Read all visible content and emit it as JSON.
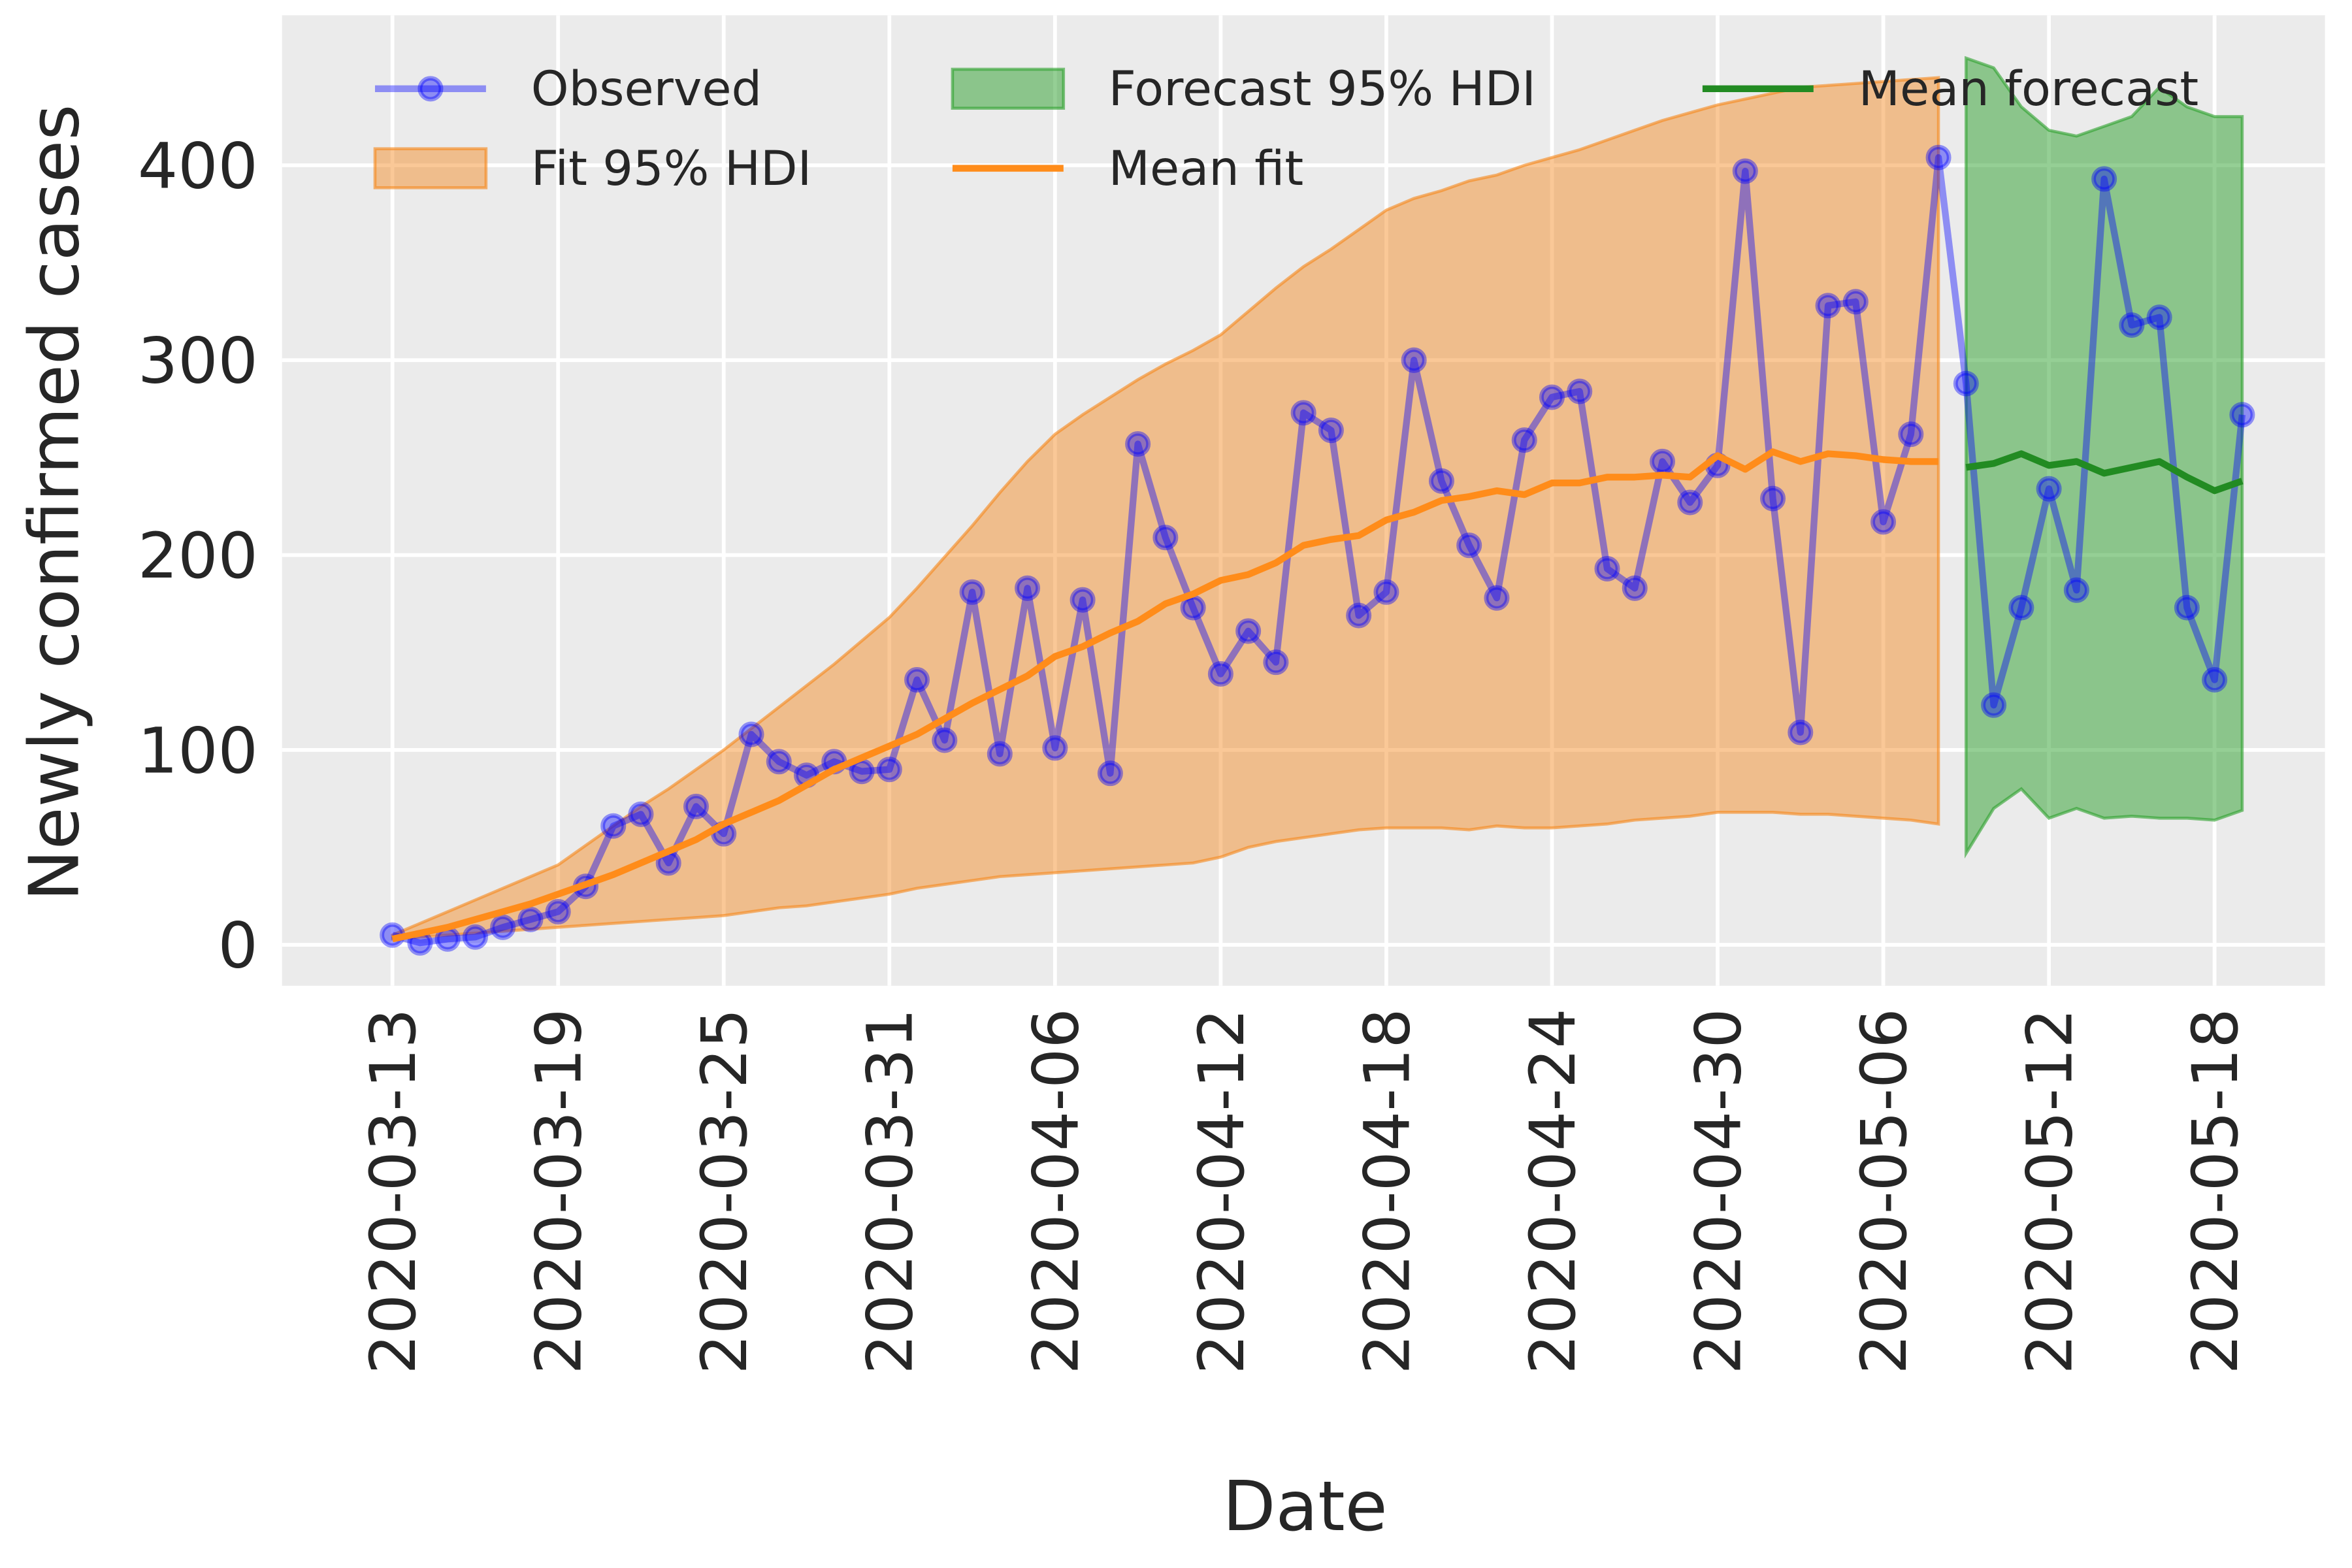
{
  "chart_data": {
    "type": "line",
    "x_label": "Date",
    "y_label": "Newly confirmed cases",
    "x": [
      "2020-03-13",
      "2020-03-14",
      "2020-03-15",
      "2020-03-16",
      "2020-03-17",
      "2020-03-18",
      "2020-03-19",
      "2020-03-20",
      "2020-03-21",
      "2020-03-22",
      "2020-03-23",
      "2020-03-24",
      "2020-03-25",
      "2020-03-26",
      "2020-03-27",
      "2020-03-28",
      "2020-03-29",
      "2020-03-30",
      "2020-03-31",
      "2020-04-01",
      "2020-04-02",
      "2020-04-03",
      "2020-04-04",
      "2020-04-05",
      "2020-04-06",
      "2020-04-07",
      "2020-04-08",
      "2020-04-09",
      "2020-04-10",
      "2020-04-11",
      "2020-04-12",
      "2020-04-13",
      "2020-04-14",
      "2020-04-15",
      "2020-04-16",
      "2020-04-17",
      "2020-04-18",
      "2020-04-19",
      "2020-04-20",
      "2020-04-21",
      "2020-04-22",
      "2020-04-23",
      "2020-04-24",
      "2020-04-25",
      "2020-04-26",
      "2020-04-27",
      "2020-04-28",
      "2020-04-29",
      "2020-04-30",
      "2020-05-01",
      "2020-05-02",
      "2020-05-03",
      "2020-05-04",
      "2020-05-05",
      "2020-05-06",
      "2020-05-07",
      "2020-05-08",
      "2020-05-09",
      "2020-05-10",
      "2020-05-11",
      "2020-05-12",
      "2020-05-13",
      "2020-05-14",
      "2020-05-15",
      "2020-05-16",
      "2020-05-17",
      "2020-05-18",
      "2020-05-19"
    ],
    "series": [
      {
        "name": "Observed",
        "type": "line",
        "color": "#0000ff",
        "alpha": 0.4,
        "marker": true,
        "values": [
          5,
          1,
          3,
          4,
          9,
          13,
          17,
          30,
          61,
          67,
          42,
          71,
          57,
          108,
          94,
          87,
          94,
          89,
          90,
          136,
          105,
          181,
          98,
          183,
          101,
          177,
          88,
          257,
          209,
          173,
          139,
          161,
          145,
          273,
          264,
          169,
          181,
          300,
          238,
          205,
          178,
          259,
          281,
          284,
          193,
          183,
          248,
          227,
          246,
          397,
          229,
          109,
          328,
          330,
          217,
          262,
          404,
          288,
          123,
          173,
          234,
          182,
          393,
          318,
          322,
          173,
          136,
          272
        ]
      },
      {
        "name": "Fit 95% HDI",
        "type": "band",
        "color": "#f58518",
        "alpha": 0.45,
        "lower": [
          3,
          4,
          5,
          6,
          7,
          8,
          9,
          10,
          11,
          12,
          13,
          14,
          15,
          17,
          19,
          20,
          22,
          24,
          26,
          29,
          31,
          33,
          35,
          36,
          37,
          38,
          39,
          40,
          41,
          42,
          45,
          50,
          53,
          55,
          57,
          59,
          60,
          60,
          60,
          59,
          61,
          60,
          60,
          61,
          62,
          64,
          65,
          66,
          68,
          68,
          68,
          67,
          67,
          66,
          65,
          64,
          62,
          null,
          null,
          null,
          null,
          null,
          null,
          null,
          null,
          null,
          null,
          null
        ],
        "upper": [
          5,
          11,
          17,
          23,
          29,
          35,
          41,
          51,
          61,
          71,
          80,
          90,
          100,
          111,
          122,
          133,
          144,
          156,
          168,
          183,
          199,
          215,
          232,
          248,
          262,
          272,
          281,
          290,
          298,
          305,
          313,
          325,
          337,
          348,
          357,
          367,
          377,
          383,
          387,
          392,
          395,
          400,
          404,
          408,
          413,
          418,
          423,
          427,
          431,
          434,
          437,
          440,
          441,
          442,
          443,
          444,
          445,
          null,
          null,
          null,
          null,
          null,
          null,
          null,
          null,
          null,
          null,
          null
        ]
      },
      {
        "name": "Forecast 95% HDI",
        "type": "band",
        "color": "#2ca02c",
        "alpha": 0.5,
        "lower": [
          null,
          null,
          null,
          null,
          null,
          null,
          null,
          null,
          null,
          null,
          null,
          null,
          null,
          null,
          null,
          null,
          null,
          null,
          null,
          null,
          null,
          null,
          null,
          null,
          null,
          null,
          null,
          null,
          null,
          null,
          null,
          null,
          null,
          null,
          null,
          null,
          null,
          null,
          null,
          null,
          null,
          null,
          null,
          null,
          null,
          null,
          null,
          null,
          null,
          null,
          null,
          null,
          null,
          null,
          null,
          null,
          null,
          47,
          70,
          80,
          65,
          70,
          65,
          66,
          65,
          65,
          64,
          69
        ],
        "upper": [
          null,
          null,
          null,
          null,
          null,
          null,
          null,
          null,
          null,
          null,
          null,
          null,
          null,
          null,
          null,
          null,
          null,
          null,
          null,
          null,
          null,
          null,
          null,
          null,
          null,
          null,
          null,
          null,
          null,
          null,
          null,
          null,
          null,
          null,
          null,
          null,
          null,
          null,
          null,
          null,
          null,
          null,
          null,
          null,
          null,
          null,
          null,
          null,
          null,
          null,
          null,
          null,
          null,
          null,
          null,
          null,
          null,
          455,
          450,
          430,
          418,
          415,
          420,
          425,
          440,
          430,
          425,
          425
        ]
      },
      {
        "name": "Mean fit",
        "type": "line",
        "color": "#ff8c1a",
        "alpha": 1,
        "values": [
          3,
          6,
          9,
          13,
          17,
          21,
          26,
          31,
          36,
          42,
          48,
          54,
          62,
          68,
          74,
          82,
          90,
          96,
          102,
          108,
          116,
          124,
          131,
          138,
          148,
          153,
          160,
          166,
          175,
          180,
          187,
          190,
          196,
          205,
          208,
          210,
          218,
          222,
          228,
          230,
          233,
          231,
          237,
          237,
          240,
          240,
          241,
          240,
          251,
          244,
          253,
          248,
          252,
          251,
          249,
          248,
          248,
          null,
          null,
          null,
          null,
          null,
          null,
          null,
          null,
          null,
          null,
          null
        ]
      },
      {
        "name": "Mean forecast",
        "type": "line",
        "color": "#228b22",
        "alpha": 1,
        "values": [
          null,
          null,
          null,
          null,
          null,
          null,
          null,
          null,
          null,
          null,
          null,
          null,
          null,
          null,
          null,
          null,
          null,
          null,
          null,
          null,
          null,
          null,
          null,
          null,
          null,
          null,
          null,
          null,
          null,
          null,
          null,
          null,
          null,
          null,
          null,
          null,
          null,
          null,
          null,
          null,
          null,
          null,
          null,
          null,
          null,
          null,
          null,
          null,
          null,
          null,
          null,
          null,
          null,
          null,
          null,
          null,
          null,
          245,
          247,
          252,
          246,
          248,
          242,
          245,
          248,
          240,
          233,
          238
        ]
      }
    ],
    "xlim": [
      "2020-03-09",
      "2020-05-22"
    ],
    "xticks": [
      "2020-03-13",
      "2020-03-19",
      "2020-03-25",
      "2020-03-31",
      "2020-04-06",
      "2020-04-12",
      "2020-04-18",
      "2020-04-24",
      "2020-04-30",
      "2020-05-06",
      "2020-05-12",
      "2020-05-18"
    ],
    "ylim": [
      -21,
      477
    ],
    "yticks": [
      0,
      100,
      200,
      300,
      400
    ],
    "grid": true,
    "legend": "top",
    "legend_rows": 2
  }
}
